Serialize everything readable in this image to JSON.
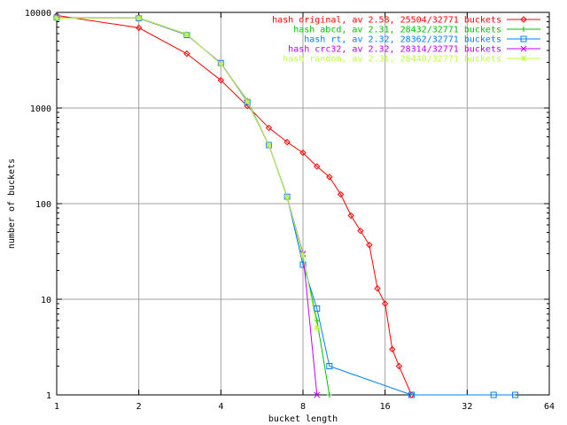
{
  "chart_data": {
    "type": "line",
    "title": "",
    "xlabel": "bucket length",
    "ylabel": "number of buckets",
    "x_scale": "log2",
    "y_scale": "log10",
    "xlim": [
      1,
      64
    ],
    "ylim": [
      1,
      10000
    ],
    "x_ticks": [
      {
        "value": 1,
        "label": "1"
      },
      {
        "value": 2,
        "label": "2"
      },
      {
        "value": 4,
        "label": "4"
      },
      {
        "value": 8,
        "label": "8"
      },
      {
        "value": 16,
        "label": "16"
      },
      {
        "value": 32,
        "label": "32"
      },
      {
        "value": 64,
        "label": "64"
      }
    ],
    "y_ticks": [
      {
        "value": 1,
        "label": "1"
      },
      {
        "value": 10,
        "label": "10"
      },
      {
        "value": 100,
        "label": "100"
      },
      {
        "value": 1000,
        "label": "1000"
      },
      {
        "value": 10000,
        "label": "10000"
      }
    ],
    "grid": true,
    "legend_position": "top-right",
    "series": [
      {
        "name": "hash original, av 2.58, 25504/32771 buckets",
        "color": "#ff0000",
        "marker": "diamond",
        "points": [
          [
            1,
            9300
          ],
          [
            2,
            6900
          ],
          [
            3,
            3700
          ],
          [
            4,
            1950
          ],
          [
            5,
            1050
          ],
          [
            6,
            620
          ],
          [
            7,
            440
          ],
          [
            8,
            340
          ],
          [
            9,
            245
          ],
          [
            10,
            190
          ],
          [
            11,
            125
          ],
          [
            12,
            75
          ],
          [
            13,
            52
          ],
          [
            14,
            37
          ],
          [
            15,
            13
          ],
          [
            16,
            9
          ],
          [
            17,
            3
          ],
          [
            18,
            2
          ],
          [
            20,
            1
          ]
        ]
      },
      {
        "name": "hash abcd, av 2.31, 28432/32771 buckets",
        "color": "#00c000",
        "marker": "plus",
        "points": [
          [
            1,
            8700
          ],
          [
            2,
            8800
          ],
          [
            3,
            5900
          ],
          [
            4,
            2900
          ],
          [
            5,
            1200
          ],
          [
            6,
            410
          ],
          [
            7,
            115
          ],
          [
            8,
            28
          ],
          [
            9,
            6
          ],
          [
            10,
            1
          ]
        ]
      },
      {
        "name": "hash rt, av 2.32, 28362/32771 buckets",
        "color": "#0080ff",
        "marker": "square",
        "points": [
          [
            1,
            8800
          ],
          [
            2,
            8700
          ],
          [
            3,
            5800
          ],
          [
            4,
            2950
          ],
          [
            5,
            1150
          ],
          [
            6,
            410
          ],
          [
            7,
            118
          ],
          [
            8,
            23
          ],
          [
            9,
            8
          ],
          [
            10,
            2
          ],
          [
            20,
            1
          ],
          [
            40,
            1
          ],
          [
            48,
            1
          ]
        ]
      },
      {
        "name": "hash crc32, av 2.32, 28314/32771 buckets",
        "color": "#c000ff",
        "marker": "x",
        "points": [
          [
            1,
            8750
          ],
          [
            2,
            8750
          ],
          [
            3,
            5850
          ],
          [
            4,
            2920
          ],
          [
            5,
            1180
          ],
          [
            6,
            405
          ],
          [
            7,
            117
          ],
          [
            8,
            30
          ],
          [
            9,
            1
          ]
        ]
      },
      {
        "name": "hash random, av 2.31, 28440/32771 buckets",
        "color": "#c0ff40",
        "marker": "star",
        "points": [
          [
            1,
            8720
          ],
          [
            2,
            8780
          ],
          [
            3,
            5880
          ],
          [
            4,
            2900
          ],
          [
            5,
            1170
          ],
          [
            6,
            408
          ],
          [
            7,
            116
          ],
          [
            8,
            29
          ],
          [
            9,
            5
          ]
        ]
      }
    ]
  }
}
